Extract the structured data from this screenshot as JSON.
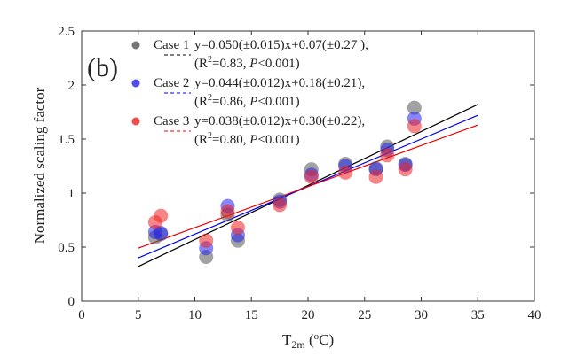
{
  "chart_data": {
    "type": "scatter",
    "panel_label": "(b)",
    "xlabel_main": "T",
    "xlabel_sub": "2m",
    "xlabel_unit_open": " (",
    "xlabel_unit_sup": "o",
    "xlabel_unit_close": "C)",
    "ylabel": "Normalized scaling factor",
    "xlim": [
      0,
      40
    ],
    "ylim": [
      0,
      2.5
    ],
    "xticks": [
      "0",
      "5",
      "10",
      "15",
      "20",
      "25",
      "30",
      "35",
      "40"
    ],
    "yticks": [
      "0",
      "0.5",
      "1",
      "1.5",
      "2",
      "2.5"
    ],
    "x": [
      6.5,
      7.0,
      11.0,
      12.9,
      13.8,
      17.5,
      20.3,
      23.3,
      26.0,
      27.0,
      28.6,
      29.4
    ],
    "series": [
      {
        "name": "Case 1",
        "color": "#555555",
        "values": [
          0.59,
          0.62,
          0.41,
          0.8,
          0.56,
          0.94,
          1.22,
          1.27,
          1.23,
          1.43,
          1.27,
          1.79
        ],
        "fit": {
          "slope": 0.05,
          "intercept": 0.07,
          "xrange": [
            5,
            35
          ]
        },
        "equation": "y=0.050(±0.015)x+0.07(±0.27 ),",
        "stats_prefix": "(R",
        "stats_sup": "2",
        "stats_mid": "=0.83, ",
        "stats_p": "P",
        "stats_end": "<0.001)"
      },
      {
        "name": "Case 2",
        "color": "#2222ee",
        "values": [
          0.64,
          0.63,
          0.49,
          0.88,
          0.61,
          0.92,
          1.17,
          1.25,
          1.22,
          1.4,
          1.26,
          1.69
        ],
        "fit": {
          "slope": 0.044,
          "intercept": 0.18,
          "xrange": [
            5,
            35
          ]
        },
        "equation": "y=0.044(±0.012)x+0.18(±0.21),",
        "stats_prefix": "(R",
        "stats_sup": "2",
        "stats_mid": "=0.86, ",
        "stats_p": "P",
        "stats_end": "<0.001)"
      },
      {
        "name": "Case 3",
        "color": "#ee2222",
        "values": [
          0.73,
          0.79,
          0.56,
          0.83,
          0.68,
          0.89,
          1.15,
          1.19,
          1.15,
          1.35,
          1.22,
          1.62
        ],
        "fit": {
          "slope": 0.038,
          "intercept": 0.3,
          "xrange": [
            5,
            35
          ]
        },
        "equation": "y=0.038(±0.012)x+0.30(±0.22),",
        "stats_prefix": "(R",
        "stats_sup": "2",
        "stats_mid": "=0.80, ",
        "stats_p": "P",
        "stats_end": "<0.001)"
      }
    ]
  }
}
